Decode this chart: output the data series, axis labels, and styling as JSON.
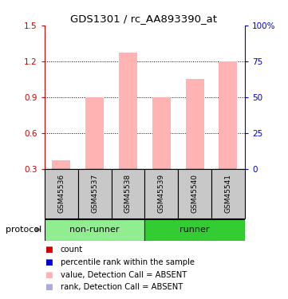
{
  "title": "GDS1301 / rc_AA893390_at",
  "samples": [
    "GSM45536",
    "GSM45537",
    "GSM45538",
    "GSM45539",
    "GSM45540",
    "GSM45541"
  ],
  "pink_bar_values": [
    0.37,
    0.9,
    1.27,
    0.9,
    1.05,
    1.2
  ],
  "blue_bar_values": [
    0.305,
    0.307,
    0.308,
    0.306,
    0.305,
    0.307
  ],
  "ylim_left": [
    0.3,
    1.5
  ],
  "ylim_right": [
    0,
    100
  ],
  "yticks_left": [
    0.3,
    0.6,
    0.9,
    1.2,
    1.5
  ],
  "yticks_right": [
    0,
    25,
    50,
    75,
    100
  ],
  "pink_color": "#FFB3B3",
  "blue_color": "#AAAADD",
  "red_color": "#CC0000",
  "dark_blue_color": "#0000CC",
  "group_color_nonrunner": "#90EE90",
  "group_color_runner": "#33CC33",
  "sample_box_color": "#C8C8C8",
  "bg_color": "#FFFFFF",
  "label_left_color": "#CC0000",
  "label_right_color": "#0000CC",
  "figsize": [
    3.61,
    3.75
  ],
  "dpi": 100
}
